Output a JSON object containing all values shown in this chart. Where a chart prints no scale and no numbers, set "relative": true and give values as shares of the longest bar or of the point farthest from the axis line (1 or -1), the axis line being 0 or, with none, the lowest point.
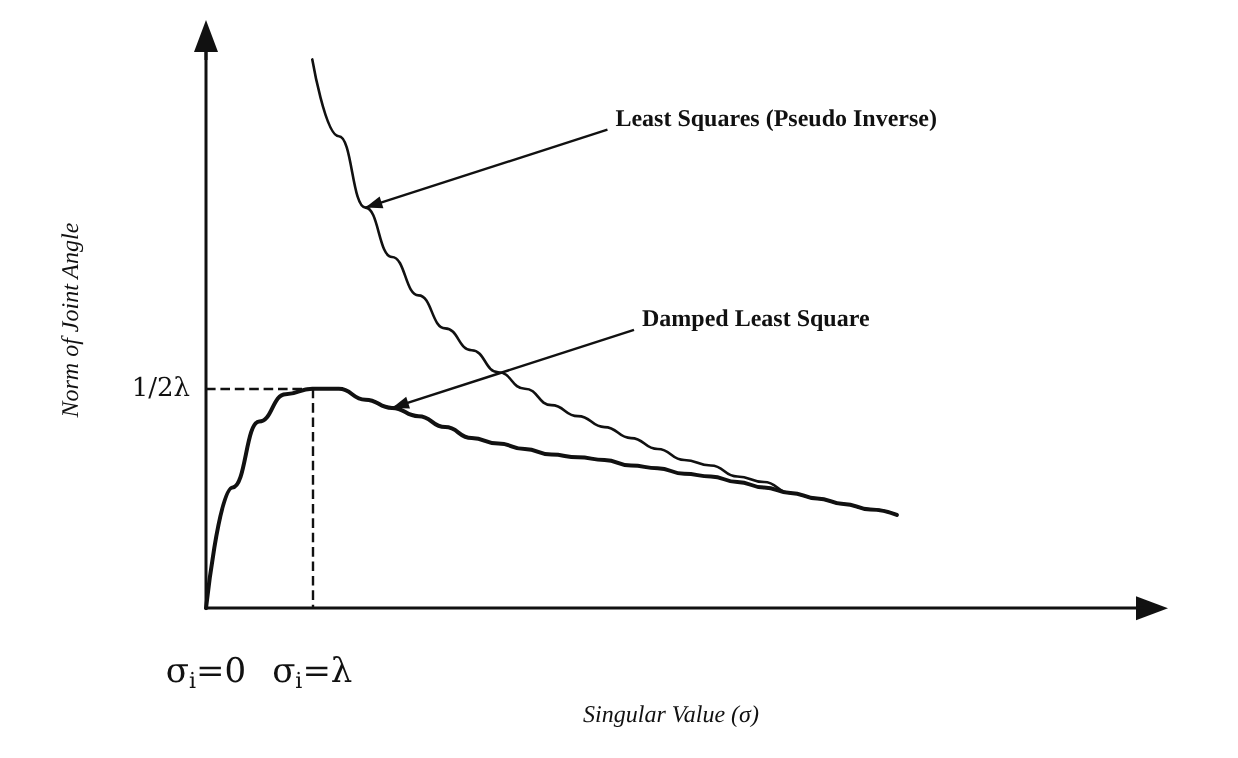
{
  "chart_data": {
    "type": "line",
    "relative": true,
    "xlabel": "Singular Value (σ)",
    "ylabel": "Norm of Joint Angle",
    "categories": [
      "σ$_{i}$=0",
      null,
      null,
      null,
      "σ$_{i}$=λ",
      null,
      null,
      null,
      null,
      null,
      null,
      null,
      null,
      null,
      null,
      null,
      null,
      null,
      null,
      null,
      null,
      null,
      null,
      null,
      null,
      null,
      null,
      null,
      null,
      null,
      null,
      null,
      null,
      null,
      null,
      null
    ],
    "series": [
      {
        "color": "#111111",
        "values": [
          null,
          null,
          null,
          null,
          1,
          0.86,
          0.73,
          0.64,
          0.57,
          0.51,
          0.47,
          0.43,
          0.4,
          0.37,
          0.35,
          0.33,
          0.31,
          0.29,
          0.27,
          0.26,
          0.24,
          0.23,
          0.21,
          0.2,
          0.19,
          0.18,
          0.17,
          null,
          null,
          null,
          null,
          null,
          null,
          null,
          null,
          null
        ]
      },
      {
        "color": "#111111",
        "values": [
          0,
          0.22,
          0.34,
          0.39,
          0.4,
          0.4,
          0.38,
          0.365,
          0.35,
          0.33,
          0.31,
          0.3,
          0.29,
          0.28,
          0.275,
          0.27,
          0.26,
          0.255,
          0.245,
          0.24,
          0.23,
          0.22,
          0.21,
          0.2,
          0.19,
          0.18,
          0.17,
          null,
          null,
          null,
          null,
          null,
          null,
          null,
          null,
          null
        ]
      }
    ],
    "annotations": [
      "Least Squares (Pseudo Inverse)",
      "Damped Least Square"
    ],
    "ref_lines": [
      {
        "axis": "y",
        "value": 0.4,
        "label": "1/2λ",
        "line_style": "dashed"
      },
      {
        "axis": "x",
        "value": "σ$_{i}$=λ",
        "line_style": "dashed"
      }
    ],
    "marker": "none",
    "line_style": "solid"
  }
}
